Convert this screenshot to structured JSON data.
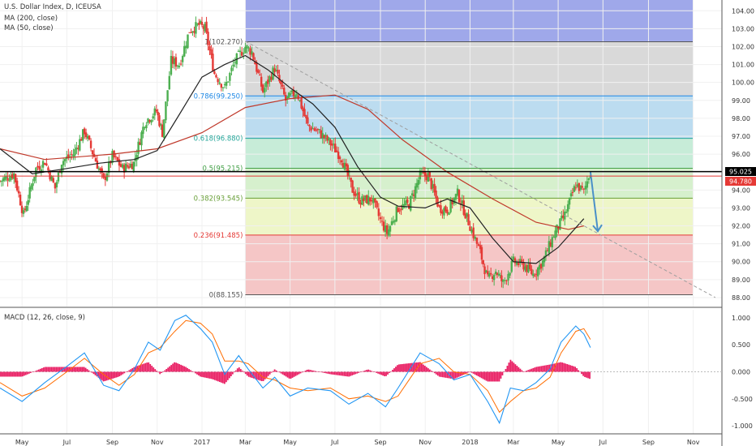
{
  "legend": {
    "title": "U.S. Dollar Index, D, ICEUSA",
    "ma200": "MA (200, close)",
    "ma50": "MA (50, close)",
    "macd": "MACD (12, 26, close, 9)"
  },
  "price_labels": {
    "current": "95.025",
    "prev": "94.780",
    "current_color": "#000000",
    "prev_color": "#e53935"
  },
  "chart_data": [
    {
      "type": "candlestick",
      "title": "U.S. Dollar Index, D, ICEUSA",
      "ylim": [
        87.5,
        104.6
      ],
      "price_ticks": [
        "104.00",
        "103.00",
        "102.00",
        "101.00",
        "100.00",
        "99.00",
        "98.00",
        "97.00",
        "96.00",
        "95.00",
        "94.00",
        "93.00",
        "92.00",
        "91.00",
        "90.00",
        "89.00",
        "88.00"
      ],
      "date_ticks": [
        "May",
        "Jul",
        "Sep",
        "Nov",
        "2017",
        "Mar",
        "May",
        "Jul",
        "Sep",
        "Nov",
        "2018",
        "Mar",
        "May",
        "Jul",
        "Sep",
        "Nov"
      ],
      "series_close": [
        [
          "2016-04-01",
          94.5
        ],
        [
          "2016-04-20",
          94.9
        ],
        [
          "2016-05-03",
          92.6
        ],
        [
          "2016-05-20",
          95.2
        ],
        [
          "2016-06-01",
          95.6
        ],
        [
          "2016-06-15",
          94.1
        ],
        [
          "2016-06-24",
          95.6
        ],
        [
          "2016-07-10",
          96.0
        ],
        [
          "2016-07-25",
          97.3
        ],
        [
          "2016-08-05",
          96.1
        ],
        [
          "2016-08-20",
          94.5
        ],
        [
          "2016-09-01",
          95.9
        ],
        [
          "2016-09-15",
          95.2
        ],
        [
          "2016-09-30",
          95.5
        ],
        [
          "2016-10-15",
          97.8
        ],
        [
          "2016-10-31",
          98.4
        ],
        [
          "2016-11-08",
          97.2
        ],
        [
          "2016-11-20",
          101.2
        ],
        [
          "2016-12-01",
          101.0
        ],
        [
          "2016-12-15",
          102.9
        ],
        [
          "2016-12-28",
          103.2
        ],
        [
          "2017-01-05",
          103.0
        ],
        [
          "2017-01-18",
          100.5
        ],
        [
          "2017-02-01",
          99.7
        ],
        [
          "2017-02-15",
          101.2
        ],
        [
          "2017-03-01",
          102.0
        ],
        [
          "2017-03-10",
          101.7
        ],
        [
          "2017-03-25",
          99.5
        ],
        [
          "2017-04-10",
          100.8
        ],
        [
          "2017-04-25",
          99.0
        ],
        [
          "2017-05-10",
          99.5
        ],
        [
          "2017-05-25",
          97.6
        ],
        [
          "2017-06-10",
          97.2
        ],
        [
          "2017-06-25",
          96.6
        ],
        [
          "2017-07-10",
          95.8
        ],
        [
          "2017-07-25",
          94.0
        ],
        [
          "2017-08-05",
          93.4
        ],
        [
          "2017-08-20",
          93.5
        ],
        [
          "2017-09-01",
          92.3
        ],
        [
          "2017-09-10",
          91.6
        ],
        [
          "2017-09-25",
          93.0
        ],
        [
          "2017-10-10",
          93.2
        ],
        [
          "2017-10-25",
          94.8
        ],
        [
          "2017-11-05",
          94.8
        ],
        [
          "2017-11-20",
          93.0
        ],
        [
          "2017-12-01",
          92.9
        ],
        [
          "2017-12-15",
          93.8
        ],
        [
          "2018-01-01",
          92.0
        ],
        [
          "2018-01-15",
          90.5
        ],
        [
          "2018-01-25",
          89.0
        ],
        [
          "2018-02-05",
          89.5
        ],
        [
          "2018-02-15",
          88.8
        ],
        [
          "2018-03-01",
          90.0
        ],
        [
          "2018-03-15",
          89.8
        ],
        [
          "2018-03-28",
          89.3
        ],
        [
          "2018-04-10",
          90.0
        ],
        [
          "2018-04-25",
          91.5
        ],
        [
          "2018-05-10",
          92.6
        ],
        [
          "2018-05-25",
          94.3
        ],
        [
          "2018-06-05",
          93.9
        ],
        [
          "2018-06-14",
          95.1
        ]
      ],
      "ma50": [
        [
          "2016-04-01",
          96.3
        ],
        [
          "2016-05-15",
          94.9
        ],
        [
          "2016-07-01",
          95.2
        ],
        [
          "2016-08-15",
          95.5
        ],
        [
          "2016-10-01",
          95.7
        ],
        [
          "2016-11-01",
          96.2
        ],
        [
          "2016-12-01",
          98.2
        ],
        [
          "2017-01-01",
          100.3
        ],
        [
          "2017-02-01",
          101.0
        ],
        [
          "2017-03-01",
          101.5
        ],
        [
          "2017-04-01",
          100.7
        ],
        [
          "2017-05-01",
          99.7
        ],
        [
          "2017-06-01",
          98.8
        ],
        [
          "2017-07-01",
          97.5
        ],
        [
          "2017-08-01",
          95.3
        ],
        [
          "2017-09-01",
          93.6
        ],
        [
          "2017-09-25",
          93.1
        ],
        [
          "2017-11-01",
          93.0
        ],
        [
          "2017-12-01",
          93.5
        ],
        [
          "2018-01-01",
          93.0
        ],
        [
          "2018-02-01",
          91.3
        ],
        [
          "2018-03-01",
          90.0
        ],
        [
          "2018-04-01",
          89.9
        ],
        [
          "2018-05-01",
          90.8
        ],
        [
          "2018-06-05",
          92.4
        ]
      ],
      "ma200": [
        [
          "2016-04-01",
          96.3
        ],
        [
          "2016-06-01",
          95.7
        ],
        [
          "2016-09-01",
          96.0
        ],
        [
          "2016-11-01",
          96.3
        ],
        [
          "2017-01-01",
          97.2
        ],
        [
          "2017-03-01",
          98.6
        ],
        [
          "2017-05-01",
          99.1
        ],
        [
          "2017-07-01",
          99.3
        ],
        [
          "2017-08-15",
          98.5
        ],
        [
          "2017-10-01",
          96.8
        ],
        [
          "2017-12-01",
          95.0
        ],
        [
          "2018-02-01",
          93.5
        ],
        [
          "2018-04-01",
          92.2
        ],
        [
          "2018-05-15",
          91.8
        ],
        [
          "2018-06-05",
          92.0
        ]
      ],
      "trendline": [
        [
          "2017-03-01",
          102.3
        ],
        [
          "2018-12-01",
          88.0
        ]
      ],
      "projection_arrow": [
        [
          "2018-06-14",
          95.0
        ],
        [
          "2018-06-24",
          91.7
        ]
      ],
      "fibonacci": [
        {
          "level": "1",
          "value": "102.270",
          "price": 102.27,
          "text": "1(102.270)",
          "color": "#555555"
        },
        {
          "level": "0.786",
          "value": "99.250",
          "price": 99.25,
          "text": "0.786(99.250)",
          "color": "#1e88e5"
        },
        {
          "level": "0.618",
          "value": "96.880",
          "price": 96.88,
          "text": "0.618(96.880)",
          "color": "#26a69a"
        },
        {
          "level": "0.5",
          "value": "95.215",
          "price": 95.215,
          "text": "0.5(95.215)",
          "color": "#43a047"
        },
        {
          "level": "0.382",
          "value": "93.545",
          "price": 93.545,
          "text": "0.382(93.545)",
          "color": "#689f38"
        },
        {
          "level": "0.236",
          "value": "91.485",
          "price": 91.485,
          "text": "0.236(91.485)",
          "color": "#e53935"
        },
        {
          "level": "0",
          "value": "88.155",
          "price": 88.155,
          "text": "0(88.155)",
          "color": "#555555"
        }
      ],
      "fib_bands": [
        {
          "from": 102.27,
          "to": 104.6,
          "color": "#9fa8ea"
        },
        {
          "from": 99.25,
          "to": 102.27,
          "color": "#d9d9d9"
        },
        {
          "from": 96.88,
          "to": 99.25,
          "color": "#bcdcf0"
        },
        {
          "from": 95.215,
          "to": 96.88,
          "color": "#c7ecd8"
        },
        {
          "from": 93.545,
          "to": 95.215,
          "color": "#d6f0cd"
        },
        {
          "from": 91.485,
          "to": 93.545,
          "color": "#eef6c8"
        },
        {
          "from": 88.155,
          "to": 91.485,
          "color": "#f5c6c6"
        }
      ],
      "horizontal_lines": [
        {
          "price": 95.025,
          "color": "#000000"
        },
        {
          "price": 94.78,
          "color": "#e53935"
        }
      ],
      "colors": {
        "up": "#4caf50",
        "down": "#e53935",
        "ma50": "#222222",
        "ma200": "#c0392b",
        "trend": "#9e9e9e",
        "arrow": "#4a90c8"
      }
    },
    {
      "type": "line",
      "title": "MACD (12, 26, close, 9)",
      "ylim": [
        -1.15,
        1.15
      ],
      "ticks": [
        "1.000",
        "0.500",
        "0.000",
        "-0.500",
        "-1.000"
      ],
      "macd": [
        [
          "2016-04-01",
          -0.3
        ],
        [
          "2016-05-01",
          -0.55
        ],
        [
          "2016-06-01",
          -0.2
        ],
        [
          "2016-07-01",
          0.1
        ],
        [
          "2016-07-25",
          0.35
        ],
        [
          "2016-08-20",
          -0.25
        ],
        [
          "2016-09-10",
          -0.35
        ],
        [
          "2016-10-01",
          0.05
        ],
        [
          "2016-10-20",
          0.55
        ],
        [
          "2016-11-05",
          0.4
        ],
        [
          "2016-11-25",
          0.95
        ],
        [
          "2016-12-10",
          1.05
        ],
        [
          "2016-12-30",
          0.8
        ],
        [
          "2017-01-15",
          0.55
        ],
        [
          "2017-02-01",
          -0.05
        ],
        [
          "2017-02-20",
          0.3
        ],
        [
          "2017-03-05",
          0.05
        ],
        [
          "2017-03-25",
          -0.3
        ],
        [
          "2017-04-10",
          -0.1
        ],
        [
          "2017-05-01",
          -0.45
        ],
        [
          "2017-05-25",
          -0.3
        ],
        [
          "2017-06-25",
          -0.35
        ],
        [
          "2017-07-20",
          -0.6
        ],
        [
          "2017-08-15",
          -0.4
        ],
        [
          "2017-09-08",
          -0.65
        ],
        [
          "2017-09-25",
          -0.3
        ],
        [
          "2017-10-25",
          0.35
        ],
        [
          "2017-11-20",
          0.15
        ],
        [
          "2017-12-10",
          -0.15
        ],
        [
          "2018-01-01",
          -0.05
        ],
        [
          "2018-01-25",
          -0.55
        ],
        [
          "2018-02-10",
          -0.95
        ],
        [
          "2018-02-25",
          -0.3
        ],
        [
          "2018-03-15",
          -0.35
        ],
        [
          "2018-04-01",
          -0.2
        ],
        [
          "2018-04-20",
          0.05
        ],
        [
          "2018-05-05",
          0.55
        ],
        [
          "2018-05-25",
          0.85
        ],
        [
          "2018-06-05",
          0.7
        ],
        [
          "2018-06-14",
          0.45
        ]
      ],
      "signal": [
        [
          "2016-04-01",
          -0.2
        ],
        [
          "2016-05-01",
          -0.45
        ],
        [
          "2016-06-01",
          -0.3
        ],
        [
          "2016-07-01",
          0.0
        ],
        [
          "2016-07-25",
          0.25
        ],
        [
          "2016-08-20",
          -0.05
        ],
        [
          "2016-09-10",
          -0.25
        ],
        [
          "2016-10-01",
          -0.05
        ],
        [
          "2016-10-20",
          0.35
        ],
        [
          "2016-11-05",
          0.45
        ],
        [
          "2016-11-25",
          0.75
        ],
        [
          "2016-12-10",
          0.95
        ],
        [
          "2016-12-30",
          0.9
        ],
        [
          "2017-01-15",
          0.7
        ],
        [
          "2017-02-01",
          0.2
        ],
        [
          "2017-02-20",
          0.2
        ],
        [
          "2017-03-05",
          0.15
        ],
        [
          "2017-03-25",
          -0.1
        ],
        [
          "2017-04-10",
          -0.15
        ],
        [
          "2017-05-01",
          -0.3
        ],
        [
          "2017-05-25",
          -0.35
        ],
        [
          "2017-06-25",
          -0.3
        ],
        [
          "2017-07-20",
          -0.5
        ],
        [
          "2017-08-15",
          -0.45
        ],
        [
          "2017-09-08",
          -0.55
        ],
        [
          "2017-09-25",
          -0.45
        ],
        [
          "2017-10-25",
          0.15
        ],
        [
          "2017-11-20",
          0.25
        ],
        [
          "2017-12-10",
          0.0
        ],
        [
          "2018-01-01",
          -0.05
        ],
        [
          "2018-01-25",
          -0.35
        ],
        [
          "2018-02-10",
          -0.75
        ],
        [
          "2018-02-25",
          -0.55
        ],
        [
          "2018-03-15",
          -0.35
        ],
        [
          "2018-04-01",
          -0.3
        ],
        [
          "2018-04-20",
          -0.1
        ],
        [
          "2018-05-05",
          0.35
        ],
        [
          "2018-05-25",
          0.75
        ],
        [
          "2018-06-05",
          0.8
        ],
        [
          "2018-06-14",
          0.6
        ]
      ],
      "colors": {
        "macd": "#2196f3",
        "signal": "#ff6d00",
        "hist": "#e91e63"
      }
    }
  ]
}
